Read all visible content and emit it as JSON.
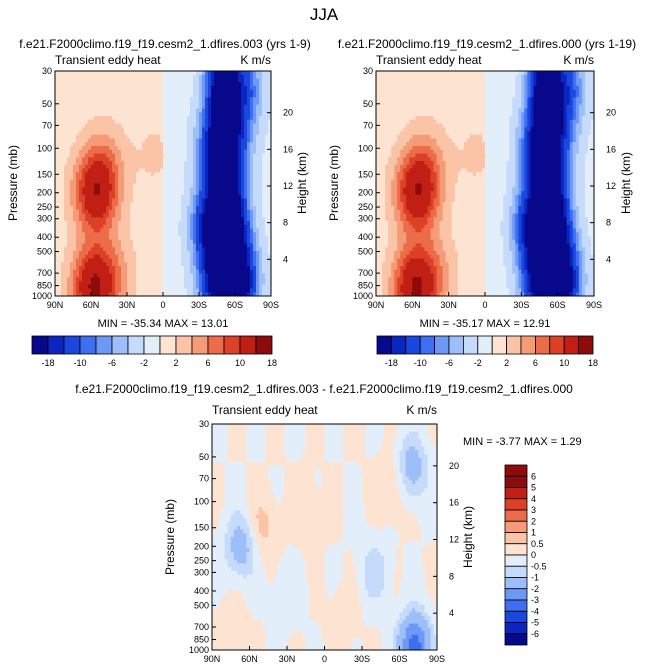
{
  "figure": {
    "title": "JJA"
  },
  "chart_data": [
    {
      "type": "heatmap",
      "title": "f.e21.F2000climo.f19_f19.cesm2_1.dfires.003 (yrs 1-9)",
      "subtitle_left": "Transient eddy heat",
      "units": "K m/s",
      "xlabel": "",
      "ylabel": "Pressure (mb)",
      "ylabel_right": "Height (km)",
      "xticks": [
        "90N",
        "60N",
        "30N",
        "0",
        "30S",
        "60S",
        "90S"
      ],
      "yticks": [
        "30",
        "50",
        "70",
        "100",
        "150",
        "200",
        "250",
        "300",
        "400",
        "500",
        "700",
        "850",
        "1000"
      ],
      "yticks_right": [
        "20",
        "16",
        "12",
        "8",
        "4"
      ],
      "stats": "MIN = -35.34  MAX = 13.01",
      "min": -35.34,
      "max": 13.01,
      "features": [
        {
          "lat": 56,
          "p": 200,
          "v": 12
        },
        {
          "lat": 58,
          "p": 880,
          "v": 13
        },
        {
          "lat": 40,
          "p": 700,
          "v": 3
        },
        {
          "lat": 48,
          "p": 120,
          "v": 3
        },
        {
          "lat": 7,
          "p": 110,
          "v": 1.5
        },
        {
          "lat": -50,
          "p": 100,
          "v": -18
        },
        {
          "lat": -48,
          "p": 330,
          "v": -30
        },
        {
          "lat": -55,
          "p": 800,
          "v": -35
        },
        {
          "lat": -60,
          "p": 40,
          "v": -15
        }
      ]
    },
    {
      "type": "heatmap",
      "title": "f.e21.F2000climo.f19_f19.cesm2_1.dfires.000 (yrs 1-19)",
      "subtitle_left": "Transient eddy heat",
      "units": "K m/s",
      "xlabel": "",
      "ylabel": "Pressure (mb)",
      "ylabel_right": "Height (km)",
      "xticks": [
        "90N",
        "60N",
        "30N",
        "0",
        "30S",
        "60S",
        "90S"
      ],
      "yticks": [
        "30",
        "50",
        "70",
        "100",
        "150",
        "200",
        "250",
        "300",
        "400",
        "500",
        "700",
        "850",
        "1000"
      ],
      "yticks_right": [
        "20",
        "16",
        "12",
        "8",
        "4"
      ],
      "stats": "MIN = -35.17  MAX = 12.91",
      "min": -35.17,
      "max": 12.91,
      "features": [
        {
          "lat": 56,
          "p": 200,
          "v": 12
        },
        {
          "lat": 58,
          "p": 880,
          "v": 12.9
        },
        {
          "lat": 40,
          "p": 700,
          "v": 3
        },
        {
          "lat": 48,
          "p": 120,
          "v": 3
        },
        {
          "lat": 7,
          "p": 110,
          "v": 1.5
        },
        {
          "lat": -50,
          "p": 100,
          "v": -18
        },
        {
          "lat": -48,
          "p": 330,
          "v": -30
        },
        {
          "lat": -55,
          "p": 800,
          "v": -35
        },
        {
          "lat": -60,
          "p": 40,
          "v": -15
        }
      ]
    },
    {
      "type": "heatmap",
      "title": "f.e21.F2000climo.f19_f19.cesm2_1.dfires.003 - f.e21.F2000climo.f19_f19.cesm2_1.dfires.000",
      "subtitle_left": "Transient eddy heat",
      "units": "K m/s",
      "xlabel": "",
      "ylabel": "Pressure (mb)",
      "ylabel_right": "Height (km)",
      "xticks": [
        "90N",
        "60N",
        "30N",
        "0",
        "30S",
        "60S",
        "90S"
      ],
      "yticks": [
        "30",
        "50",
        "70",
        "100",
        "150",
        "200",
        "250",
        "300",
        "400",
        "500",
        "700",
        "850",
        "1000"
      ],
      "yticks_right": [
        "20",
        "16",
        "12",
        "8",
        "4"
      ],
      "stats": "MIN = -3.77  MAX =  1.29",
      "min": -3.77,
      "max": 1.29,
      "features": [
        {
          "lat": -70,
          "p": 60,
          "v": -1.5
        },
        {
          "lat": -72,
          "p": 950,
          "v": -3.5
        },
        {
          "lat": -40,
          "p": 300,
          "v": -0.8
        },
        {
          "lat": 67,
          "p": 200,
          "v": -1.5
        },
        {
          "lat": 50,
          "p": 150,
          "v": 0.7
        },
        {
          "lat": 30,
          "p": 400,
          "v": -0.4
        },
        {
          "lat": -55,
          "p": 80,
          "v": 0.6
        },
        {
          "lat": 15,
          "p": 120,
          "v": 0.4
        },
        {
          "lat": -15,
          "p": 600,
          "v": 0.3
        },
        {
          "lat": 75,
          "p": 700,
          "v": 0.3
        }
      ]
    }
  ],
  "colorbars": {
    "left": {
      "labels": [
        "-18",
        "-10",
        "-6",
        "-2",
        "2",
        "6",
        "10",
        "18"
      ]
    },
    "right": {
      "labels": [
        "-18",
        "-10",
        "-6",
        "-2",
        "2",
        "6",
        "10",
        "18"
      ]
    },
    "diff": {
      "labels": [
        "6",
        "5",
        "4",
        "3",
        "2",
        "1",
        "0.5",
        "0",
        "-0.5",
        "-1",
        "-2",
        "-3",
        "-4",
        "-5",
        "-6"
      ]
    }
  },
  "palette": [
    "#08088c",
    "#0a25c0",
    "#1a47e0",
    "#3d6ff0",
    "#6e98f6",
    "#9ebef9",
    "#c6dbfb",
    "#e3eefb",
    "#fde4d2",
    "#fbc4a7",
    "#f59b78",
    "#ec6c4a",
    "#dc4027",
    "#c11f14",
    "#8e0b0b"
  ]
}
